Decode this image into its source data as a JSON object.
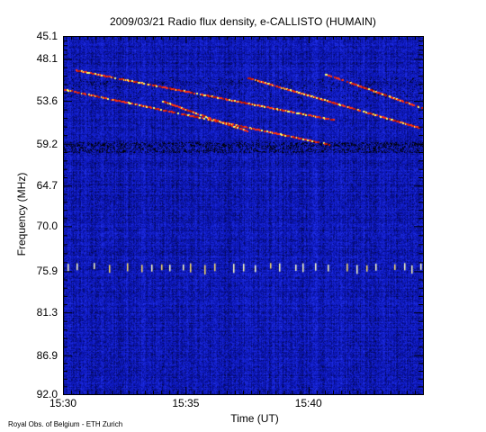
{
  "chart_data": {
    "type": "heatmap",
    "title": "2009/03/21  Radio flux density, e-CALLISTO (HUMAIN)",
    "xlabel": "Time (UT)",
    "ylabel": "Frequency (MHz)",
    "credit": "Royal Obs. of Belgium - ETH Zurich",
    "x_range": [
      "15:30",
      "15:44:40"
    ],
    "x_ticks": [
      "15:30",
      "15:35",
      "15:40"
    ],
    "y_range": [
      45.1,
      92.0
    ],
    "y_axis_inverted": true,
    "y_ticks": [
      "45.1",
      "48.1",
      "53.6",
      "59.2",
      "64.7",
      "70.0",
      "75.9",
      "81.3",
      "86.9",
      "92.0"
    ],
    "colormap": [
      "#000000",
      "#0a14b4",
      "#2a3cff",
      "#ff3000",
      "#ffff80"
    ],
    "features": {
      "drifting_bursts": [
        {
          "start": "15:30:00",
          "start_mhz": 52.0,
          "end": "15:40:50",
          "end_mhz": 59.2
        },
        {
          "start": "15:30:30",
          "start_mhz": 49.5,
          "end": "15:41:00",
          "end_mhz": 56.0
        },
        {
          "start": "15:34:00",
          "start_mhz": 53.5,
          "end": "15:37:30",
          "end_mhz": 57.5
        },
        {
          "start": "15:37:30",
          "start_mhz": 50.5,
          "end": "15:44:30",
          "end_mhz": 57.0
        },
        {
          "start": "15:40:40",
          "start_mhz": 50.0,
          "end": "15:44:40",
          "end_mhz": 54.5
        }
      ],
      "interference_band_mhz": 59.7,
      "spike_row_mhz": 75.5
    }
  }
}
